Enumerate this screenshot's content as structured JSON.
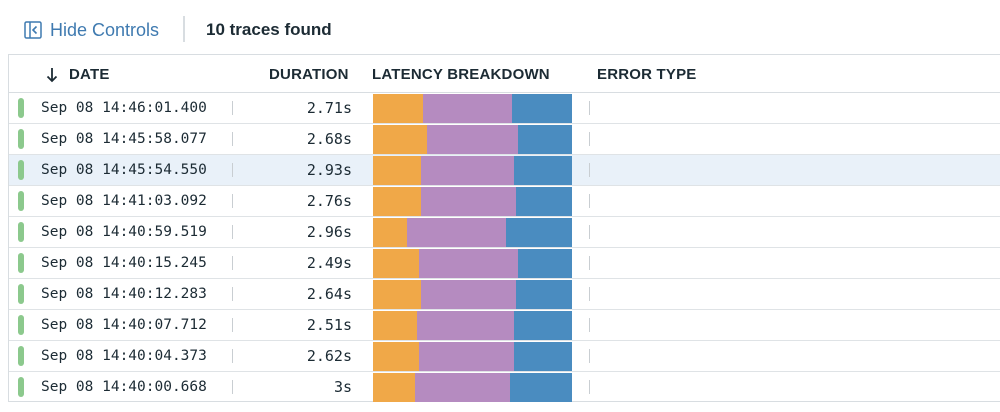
{
  "header": {
    "hide_controls_label": "Hide Controls",
    "traces_count": "10 traces found"
  },
  "table": {
    "columns": {
      "date": "DATE",
      "duration": "DURATION",
      "latency": "LATENCY BREAKDOWN",
      "error_type": "ERROR TYPE"
    },
    "sort_icon": "arrow-down-icon",
    "colors": {
      "status_ok": "#8cc98d",
      "seg_a": "#f0a848",
      "seg_b": "#b58bc0",
      "seg_c": "#4a8cc0",
      "selected_row": "#e9f1f9"
    },
    "rows": [
      {
        "date": "Sep 08 14:46:01.400",
        "duration": "2.71s",
        "breakdown": [
          0.25,
          0.45,
          0.3
        ],
        "error_type": "",
        "selected": false
      },
      {
        "date": "Sep 08 14:45:58.077",
        "duration": "2.68s",
        "breakdown": [
          0.27,
          0.46,
          0.27
        ],
        "error_type": "",
        "selected": false
      },
      {
        "date": "Sep 08 14:45:54.550",
        "duration": "2.93s",
        "breakdown": [
          0.24,
          0.47,
          0.29
        ],
        "error_type": "",
        "selected": true
      },
      {
        "date": "Sep 08 14:41:03.092",
        "duration": "2.76s",
        "breakdown": [
          0.24,
          0.48,
          0.28
        ],
        "error_type": "",
        "selected": false
      },
      {
        "date": "Sep 08 14:40:59.519",
        "duration": "2.96s",
        "breakdown": [
          0.17,
          0.5,
          0.33
        ],
        "error_type": "",
        "selected": false
      },
      {
        "date": "Sep 08 14:40:15.245",
        "duration": "2.49s",
        "breakdown": [
          0.23,
          0.5,
          0.27
        ],
        "error_type": "",
        "selected": false
      },
      {
        "date": "Sep 08 14:40:12.283",
        "duration": "2.64s",
        "breakdown": [
          0.24,
          0.48,
          0.28
        ],
        "error_type": "",
        "selected": false
      },
      {
        "date": "Sep 08 14:40:07.712",
        "duration": "2.51s",
        "breakdown": [
          0.22,
          0.49,
          0.29
        ],
        "error_type": "",
        "selected": false
      },
      {
        "date": "Sep 08 14:40:04.373",
        "duration": "2.62s",
        "breakdown": [
          0.23,
          0.48,
          0.29
        ],
        "error_type": "",
        "selected": false
      },
      {
        "date": "Sep 08 14:40:00.668",
        "duration": "3s",
        "breakdown": [
          0.21,
          0.48,
          0.31
        ],
        "error_type": "",
        "selected": false
      }
    ]
  }
}
